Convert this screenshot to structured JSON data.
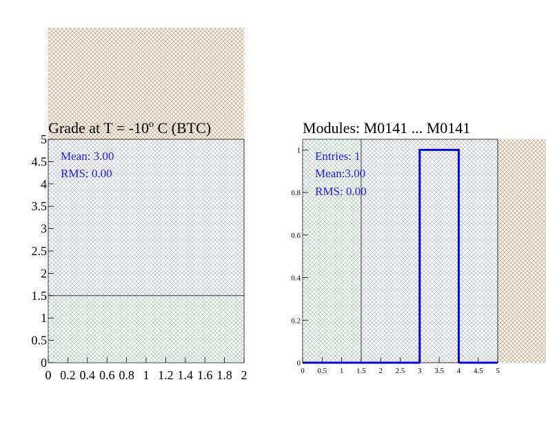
{
  "colors": {
    "tan_hatch": "#c8a07a",
    "blue_hatch": "#9aa4b8",
    "green_hatch": "#a8c8b4",
    "hist_line": "#0000dd",
    "stats_text": "#1a1aee"
  },
  "chart_data": [
    {
      "type": "line",
      "title_main": "Grade at T =  -10",
      "title_sup": "o",
      "title_rest": " C (BTC)",
      "xlim": [
        0,
        2
      ],
      "ylim": [
        0,
        5
      ],
      "x_ticks": [
        "0",
        "0.2",
        "0.4",
        "0.6",
        "0.8",
        "1",
        "1.2",
        "1.4",
        "1.6",
        "1.8",
        "2"
      ],
      "y_ticks": [
        "0",
        "0.5",
        "1",
        "1.5",
        "2",
        "2.5",
        "3",
        "3.5",
        "4",
        "4.5",
        "5"
      ],
      "threshold_y": 1.5,
      "stats": {
        "mean": "Mean: 3.00",
        "rms": "RMS:  0.00"
      }
    },
    {
      "type": "bar",
      "title": "Modules:  M0141 ... M0141",
      "xlim": [
        0,
        5
      ],
      "ylim": [
        0,
        1.05
      ],
      "x_ticks": [
        "0",
        "0.5",
        "1",
        "1.5",
        "2",
        "2.5",
        "3",
        "3.5",
        "4",
        "4.5",
        "5"
      ],
      "y_ticks": [
        "0",
        "0.2",
        "0.4",
        "0.6",
        "0.8",
        "1"
      ],
      "bins": [
        {
          "x0": 0,
          "x1": 3,
          "value": 0
        },
        {
          "x0": 3,
          "x1": 4,
          "value": 1
        },
        {
          "x0": 4,
          "x1": 5,
          "value": 0
        }
      ],
      "threshold_x": 1.5,
      "stats": {
        "entries": "Entries:   1",
        "mean": "Mean:3.00",
        "rms": "RMS: 0.00"
      }
    }
  ]
}
